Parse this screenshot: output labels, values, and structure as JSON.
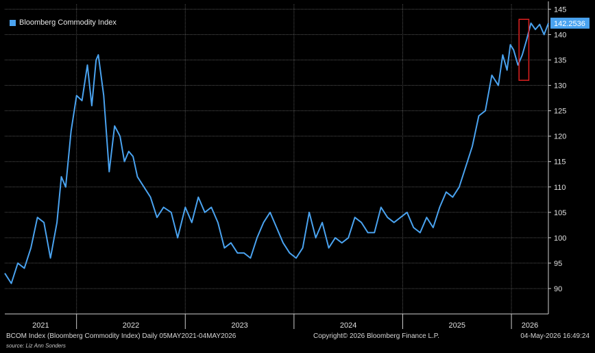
{
  "legend": {
    "label": "Bloomberg Commodity Index"
  },
  "last_value_label": "142.2536",
  "footer": {
    "left": "BCOM Index (Bloomberg Commodity Index) Daily 05MAY2021-04MAY2026",
    "center": "Copyright© 2026 Bloomberg Finance L.P.",
    "right": "04-May-2026 16:49:24",
    "source": "source: Liz Ann Sonders"
  },
  "colors": {
    "line": "#4aa3f0",
    "highlight": "#e02020",
    "grid": "#555555",
    "background": "#000000"
  },
  "chart_data": {
    "type": "line",
    "title": "",
    "xlabel": "",
    "ylabel": "",
    "ylim": [
      85,
      146
    ],
    "xlim": [
      2021.34,
      2026.34
    ],
    "x_ticks": [
      "2021",
      "2022",
      "2023",
      "2024",
      "2025",
      "2026"
    ],
    "y_ticks": [
      90,
      95,
      100,
      105,
      110,
      115,
      120,
      125,
      130,
      135,
      140,
      145
    ],
    "grid": true,
    "legend_position": "top-left",
    "series": [
      {
        "name": "Bloomberg Commodity Index",
        "x": [
          2021.34,
          2021.4,
          2021.46,
          2021.52,
          2021.58,
          2021.64,
          2021.7,
          2021.76,
          2021.82,
          2021.86,
          2021.9,
          2021.95,
          2022.0,
          2022.05,
          2022.1,
          2022.14,
          2022.18,
          2022.2,
          2022.25,
          2022.3,
          2022.35,
          2022.4,
          2022.44,
          2022.48,
          2022.52,
          2022.56,
          2022.62,
          2022.68,
          2022.74,
          2022.8,
          2022.87,
          2022.93,
          2023.0,
          2023.06,
          2023.12,
          2023.18,
          2023.24,
          2023.3,
          2023.36,
          2023.42,
          2023.48,
          2023.54,
          2023.6,
          2023.66,
          2023.72,
          2023.78,
          2023.84,
          2023.9,
          2023.96,
          2024.02,
          2024.08,
          2024.14,
          2024.2,
          2024.26,
          2024.32,
          2024.38,
          2024.44,
          2024.5,
          2024.56,
          2024.62,
          2024.68,
          2024.74,
          2024.8,
          2024.86,
          2024.92,
          2024.98,
          2025.04,
          2025.1,
          2025.16,
          2025.22,
          2025.28,
          2025.34,
          2025.4,
          2025.46,
          2025.52,
          2025.58,
          2025.64,
          2025.7,
          2025.76,
          2025.82,
          2025.88,
          2025.92,
          2025.96,
          2025.99,
          2026.02,
          2026.06,
          2026.1,
          2026.14,
          2026.18,
          2026.22,
          2026.26,
          2026.3,
          2026.34
        ],
        "y": [
          93,
          91,
          95,
          94,
          98,
          104,
          103,
          96,
          103,
          112,
          110,
          121,
          128,
          127,
          134,
          126,
          135,
          136,
          128,
          113,
          122,
          120,
          115,
          117,
          116,
          112,
          110,
          108,
          104,
          106,
          105,
          100,
          106,
          103,
          108,
          105,
          106,
          103,
          98,
          99,
          97,
          97,
          96,
          100,
          103,
          105,
          102,
          99,
          97,
          96,
          98,
          105,
          100,
          103,
          98,
          100,
          99,
          100,
          104,
          103,
          101,
          101,
          106,
          104,
          103,
          104,
          105,
          102,
          101,
          104,
          102,
          106,
          109,
          108,
          110,
          114,
          118,
          124,
          125,
          132,
          130,
          136,
          133,
          138,
          137,
          134,
          136,
          139,
          142.25,
          141,
          142,
          140,
          142.25
        ]
      }
    ],
    "annotations": [
      {
        "type": "highlight_box",
        "x_range": [
          2026.07,
          2026.16
        ],
        "y_range": [
          131,
          143
        ]
      }
    ]
  }
}
